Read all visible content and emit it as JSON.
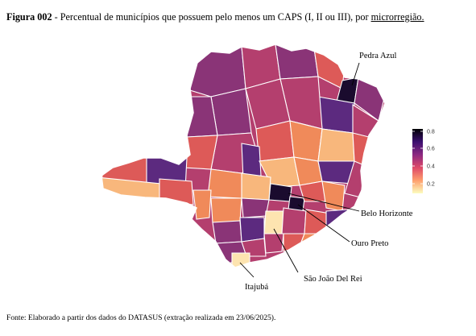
{
  "figure": {
    "number": "Figura 002",
    "separator": " - ",
    "title_text": "Percentual de municípios que possuem pelo menos um CAPS (I, II ou III), por ",
    "title_link": "microrregião."
  },
  "legend": {
    "ticks": [
      "0.8",
      "0.6",
      "0.4",
      "0.2"
    ],
    "gradient_colors": [
      "#000004",
      "#3b0f70",
      "#8c2981",
      "#de4968",
      "#fe9f6d",
      "#fcfdbf"
    ]
  },
  "map_labels": {
    "pedra_azul": "Pedra Azul",
    "belo_horizonte": "Belo Horizonte",
    "ouro_preto": "Ouro Preto",
    "sao_joao_del_rei": "São João Del Rei",
    "itajuba": "Itajubá"
  },
  "colors": {
    "level_high": "#1a0b2e",
    "level_purple": "#5c2a7f",
    "level_magenta": "#8a3477",
    "level_rose": "#b43f6e",
    "level_coral": "#dd5a58",
    "level_orange": "#f08a5a",
    "level_peach": "#f8b77c",
    "level_light": "#fde4b0"
  },
  "source": "Fonte: Elaborado a partir dos dados do DATASUS (extração realizada em 23/06/2025)."
}
